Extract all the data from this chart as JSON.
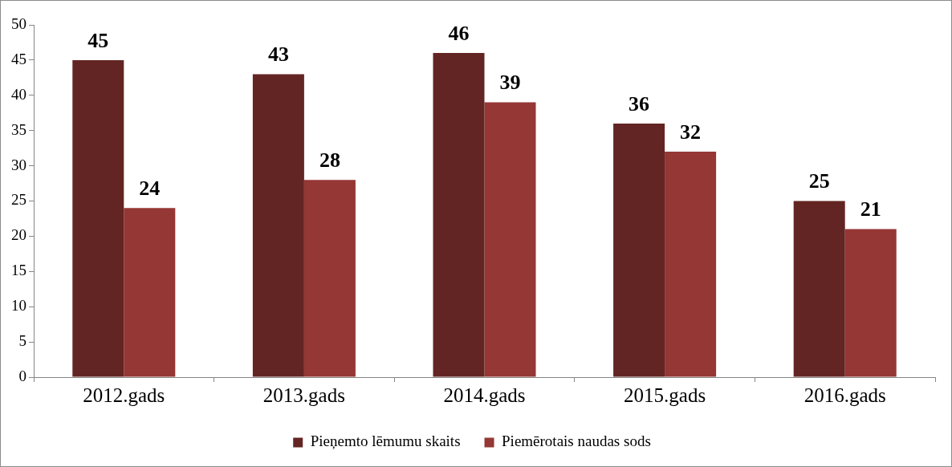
{
  "chart_data": {
    "type": "bar",
    "categories": [
      "2012.gads",
      "2013.gads",
      "2014.gads",
      "2015.gads",
      "2016.gads"
    ],
    "series": [
      {
        "name": "Pieņemto lēmumu skaits",
        "color": "#632523",
        "values": [
          45,
          43,
          46,
          36,
          25
        ]
      },
      {
        "name": "Piemērotais naudas sods",
        "color": "#953735",
        "values": [
          24,
          28,
          39,
          32,
          21
        ]
      }
    ],
    "ylim": [
      0,
      50
    ],
    "yticks": [
      0,
      5,
      10,
      15,
      20,
      25,
      30,
      35,
      40,
      45,
      50
    ],
    "grid": false,
    "legend": "bottom",
    "data_labels": true
  }
}
